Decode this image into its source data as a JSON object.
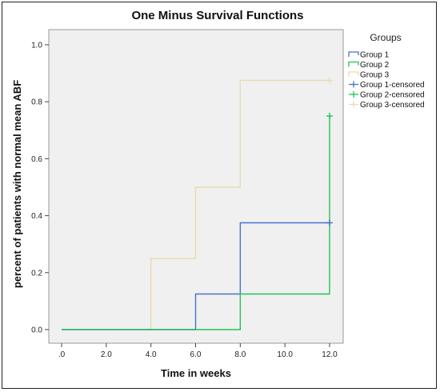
{
  "chart_data": {
    "type": "line",
    "title": "One Minus Survival Functions",
    "xlabel": "Time in weeks",
    "ylabel": "percent of patients with normal mean ABF",
    "xlim": [
      0,
      12
    ],
    "ylim": [
      0,
      1.0
    ],
    "x_ticks": [
      ".0",
      "2.0",
      "4.0",
      "6.0",
      "8.0",
      "10.0",
      "12.0"
    ],
    "x_tick_values": [
      0,
      2,
      4,
      6,
      8,
      10,
      12
    ],
    "y_ticks": [
      "0.0",
      "0.2",
      "0.4",
      "0.6",
      "0.8",
      "1.0"
    ],
    "y_tick_values": [
      0,
      0.2,
      0.4,
      0.6,
      0.8,
      1.0
    ],
    "grid": false,
    "step": true,
    "legend_title": "Groups",
    "legend_position": "right",
    "series": [
      {
        "name": "Group 1",
        "color": "#4a6fd0",
        "x": [
          0,
          6,
          8,
          12
        ],
        "y": [
          0,
          0.125,
          0.375,
          0.375
        ]
      },
      {
        "name": "Group 2",
        "color": "#22c35a",
        "x": [
          0,
          8,
          12
        ],
        "y": [
          0,
          0.125,
          0.75
        ]
      },
      {
        "name": "Group 3",
        "color": "#e8dcb0",
        "x": [
          0,
          4,
          6,
          8,
          12
        ],
        "y": [
          0,
          0.25,
          0.5,
          0.875,
          0.875
        ]
      }
    ],
    "censored": [
      {
        "name": "Group 1-censored",
        "color": "#4a6fd0",
        "x": [
          12
        ],
        "y": [
          0.375
        ]
      },
      {
        "name": "Group 2-censored",
        "color": "#22c35a",
        "x": [
          12
        ],
        "y": [
          0.75
        ]
      },
      {
        "name": "Group 3-censored",
        "color": "#e8dcb0",
        "x": [
          12
        ],
        "y": [
          0.875
        ]
      }
    ]
  }
}
